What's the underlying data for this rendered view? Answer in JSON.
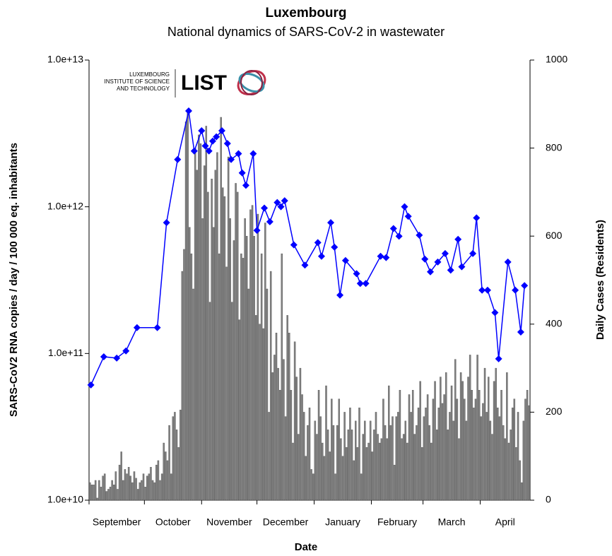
{
  "chart_data": {
    "type": "combo",
    "title": "Luxembourg",
    "subtitle": "National dynamics of SARS-CoV-2 in wastewater",
    "x_label": "Date",
    "y_label": "SARS-CoV2 RNA copies / day  / 100 000 eq. inhabitants",
    "y2_label": "Daily Cases (Residents)",
    "xlim": [
      0,
      239
    ],
    "xticks": [
      0,
      30,
      61,
      91,
      122,
      153,
      181,
      212
    ],
    "month_labels": [
      "September",
      "October",
      "November",
      "December",
      "January",
      "February",
      "March",
      "April"
    ],
    "ylog": true,
    "ylim": [
      10000000000,
      10000000000000
    ],
    "yticks": [
      {
        "value": 10000000000,
        "label": "1.0e+10"
      },
      {
        "value": 100000000000,
        "label": "1.0e+11"
      },
      {
        "value": 1000000000000,
        "label": "1.0e+12"
      },
      {
        "value": 10000000000000,
        "label": "1.0e+13"
      }
    ],
    "y2lim": [
      0,
      1000
    ],
    "y2ticks": [
      0,
      200,
      400,
      600,
      800,
      1000
    ],
    "logo": {
      "lines": [
        "LUXEMBOURG",
        "INSTITUTE OF SCIENCE",
        "AND TECHNOLOGY"
      ],
      "mark": "LIST"
    },
    "series": [
      {
        "type": "bar",
        "axis": "y2",
        "color": "#808080",
        "values": [
          40,
          35,
          35,
          45,
          5,
          45,
          30,
          55,
          60,
          20,
          25,
          30,
          45,
          35,
          65,
          25,
          80,
          110,
          45,
          70,
          60,
          75,
          55,
          40,
          65,
          50,
          25,
          40,
          45,
          60,
          30,
          55,
          60,
          75,
          45,
          40,
          80,
          90,
          45,
          60,
          130,
          110,
          90,
          170,
          60,
          190,
          200,
          160,
          120,
          205,
          520,
          570,
          860,
          880,
          620,
          560,
          480,
          800,
          750,
          830,
          810,
          640,
          760,
          850,
          700,
          450,
          730,
          620,
          750,
          790,
          560,
          870,
          710,
          690,
          530,
          780,
          640,
          450,
          590,
          720,
          700,
          410,
          560,
          550,
          640,
          600,
          480,
          660,
          670,
          600,
          420,
          650,
          400,
          560,
          390,
          630,
          480,
          200,
          520,
          290,
          330,
          380,
          300,
          250,
          560,
          320,
          190,
          420,
          380,
          250,
          130,
          360,
          280,
          150,
          300,
          240,
          200,
          100,
          170,
          210,
          70,
          60,
          180,
          150,
          250,
          190,
          130,
          100,
          260,
          160,
          110,
          230,
          170,
          60,
          170,
          230,
          140,
          100,
          200,
          120,
          160,
          210,
          160,
          90,
          180,
          120,
          210,
          60,
          150,
          180,
          120,
          130,
          180,
          110,
          160,
          200,
          150,
          130,
          140,
          230,
          170,
          140,
          260,
          170,
          190,
          80,
          190,
          200,
          250,
          140,
          150,
          180,
          130,
          240,
          200,
          250,
          150,
          170,
          210,
          270,
          120,
          190,
          210,
          240,
          170,
          130,
          230,
          270,
          160,
          210,
          280,
          220,
          240,
          290,
          160,
          200,
          260,
          180,
          320,
          230,
          140,
          290,
          270,
          230,
          180,
          280,
          330,
          250,
          210,
          230,
          330,
          250,
          190,
          220,
          300,
          200,
          280,
          180,
          150,
          270,
          300,
          210,
          190,
          250,
          170,
          140,
          290,
          130,
          160,
          210,
          230,
          120,
          200,
          90,
          40,
          180,
          230,
          250,
          215
        ]
      },
      {
        "type": "line",
        "axis": "y",
        "color": "#0000ff",
        "x": [
          1,
          8,
          15,
          20,
          26,
          37,
          42,
          48,
          54,
          57,
          61,
          63,
          65,
          67,
          69,
          72,
          75,
          77,
          81,
          83,
          85,
          89,
          91,
          95,
          98,
          102,
          104,
          106,
          111,
          117,
          124,
          126,
          131,
          133,
          136,
          139,
          145,
          147,
          150,
          158,
          161,
          165,
          168,
          171,
          173,
          179,
          182,
          185,
          189,
          193,
          196,
          200,
          202,
          208,
          210,
          213,
          216,
          220,
          222,
          227,
          231,
          234,
          236
        ],
        "values": [
          61000000000,
          95000000000,
          93000000000,
          104000000000,
          150000000000,
          150000000000,
          780000000000,
          2100000000000,
          4500000000000,
          2400000000000,
          3300000000000,
          2600000000000,
          2400000000000,
          2800000000000,
          3000000000000,
          3300000000000,
          2700000000000,
          2100000000000,
          2300000000000,
          1700000000000,
          1400000000000,
          2300000000000,
          690000000000,
          980000000000,
          790000000000,
          1070000000000,
          1000000000000,
          1100000000000,
          550000000000,
          400000000000,
          570000000000,
          460000000000,
          780000000000,
          530000000000,
          250000000000,
          430000000000,
          350000000000,
          300000000000,
          300000000000,
          460000000000,
          450000000000,
          710000000000,
          630000000000,
          1000000000000,
          860000000000,
          640000000000,
          440000000000,
          360000000000,
          420000000000,
          480000000000,
          370000000000,
          600000000000,
          390000000000,
          480000000000,
          840000000000,
          270000000000,
          270000000000,
          190000000000,
          92000000000,
          420000000000,
          270000000000,
          140000000000,
          290000000000
        ]
      }
    ]
  }
}
